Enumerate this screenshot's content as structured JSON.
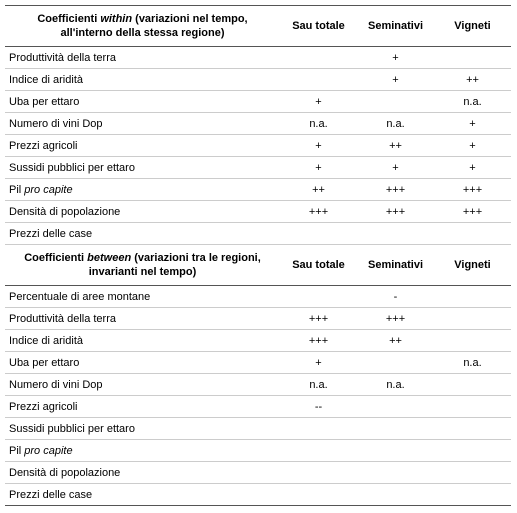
{
  "sections": [
    {
      "header": {
        "label_parts": [
          "Coefficienti ",
          "within",
          " (variazioni nel tempo, all'interno della stessa regione)"
        ],
        "columns": [
          "Sau totale",
          "Seminativi",
          "Vigneti"
        ]
      },
      "rows": [
        {
          "label_parts": [
            "Produttività della terra"
          ],
          "values": [
            null,
            "+",
            null
          ]
        },
        {
          "label_parts": [
            "Indice di aridità"
          ],
          "values": [
            null,
            "+",
            "++"
          ]
        },
        {
          "label_parts": [
            "Uba per ettaro"
          ],
          "values": [
            "+",
            null,
            "n.a."
          ]
        },
        {
          "label_parts": [
            "Numero di vini Dop"
          ],
          "values": [
            "n.a.",
            "n.a.",
            "+"
          ]
        },
        {
          "label_parts": [
            "Prezzi agricoli"
          ],
          "values": [
            "+",
            "++",
            "+"
          ]
        },
        {
          "label_parts": [
            "Sussidi pubblici per ettaro"
          ],
          "values": [
            "+",
            "+",
            "+"
          ]
        },
        {
          "label_parts": [
            "Pil ",
            "pro capite"
          ],
          "values": [
            "++",
            "+++",
            "+++"
          ]
        },
        {
          "label_parts": [
            "Densità di popolazione"
          ],
          "values": [
            "+++",
            "+++",
            "+++"
          ]
        },
        {
          "label_parts": [
            "Prezzi delle case"
          ],
          "values": [
            null,
            null,
            null
          ]
        }
      ]
    },
    {
      "header": {
        "label_parts": [
          "Coefficienti ",
          "between",
          " (variazioni tra le regioni, invarianti nel tempo)"
        ],
        "columns": [
          "Sau totale",
          "Seminativi",
          "Vigneti"
        ]
      },
      "rows": [
        {
          "label_parts": [
            "Percentuale di aree montane"
          ],
          "values": [
            null,
            "-",
            null
          ]
        },
        {
          "label_parts": [
            "Produttività della terra"
          ],
          "values": [
            "+++",
            "+++",
            null
          ]
        },
        {
          "label_parts": [
            "Indice di aridità"
          ],
          "values": [
            "+++",
            "++",
            null
          ]
        },
        {
          "label_parts": [
            "Uba per ettaro"
          ],
          "values": [
            "+",
            null,
            "n.a."
          ]
        },
        {
          "label_parts": [
            "Numero di vini Dop"
          ],
          "values": [
            "n.a.",
            "n.a.",
            null
          ]
        },
        {
          "label_parts": [
            "Prezzi agricoli"
          ],
          "values": [
            "--",
            null,
            null
          ]
        },
        {
          "label_parts": [
            "Sussidi pubblici per ettaro"
          ],
          "values": [
            null,
            null,
            null
          ]
        },
        {
          "label_parts": [
            "Pil ",
            "pro capite"
          ],
          "values": [
            null,
            null,
            null
          ]
        },
        {
          "label_parts": [
            "Densità di popolazione"
          ],
          "values": [
            null,
            null,
            null
          ]
        },
        {
          "label_parts": [
            "Prezzi delle case"
          ],
          "values": [
            null,
            null,
            null
          ]
        }
      ]
    }
  ]
}
